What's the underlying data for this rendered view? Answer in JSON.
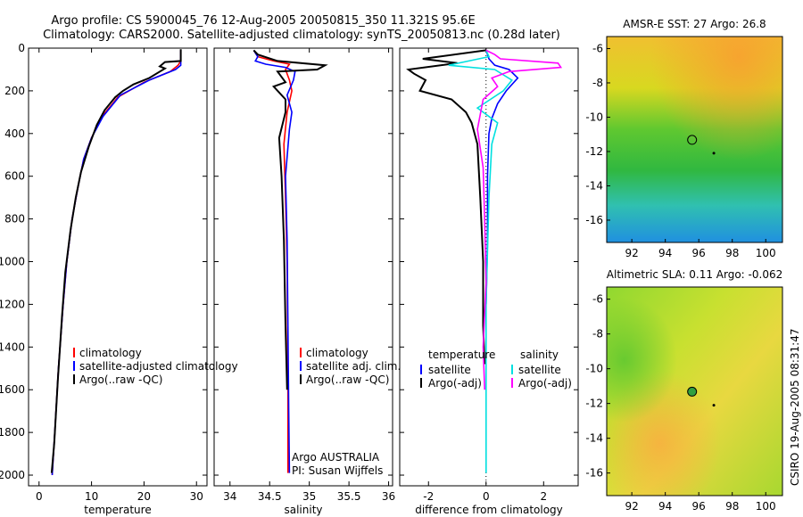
{
  "header": {
    "title_line1": "Argo profile: CS 5900045_76 12-Aug-2005 20050815_350 11.321S 95.6E",
    "title_line2": "Climatology: CARS2000. Satellite-adjusted climatology: synTS_20050813.nc (0.28d later)"
  },
  "footer": {
    "credit": "CSIRO 19-Aug-2005 08:31:47"
  },
  "colors": {
    "climatology": "#ff0000",
    "satellite": "#0000ff",
    "argo": "#000000",
    "sat_salinity": "#00e0e0",
    "argo_salinity": "#ff00ff"
  },
  "chart_data": [
    {
      "type": "line",
      "id": "temperature",
      "xlabel": "temperature",
      "xlim": [
        -2,
        32
      ],
      "xticks": [
        0,
        10,
        20,
        30
      ],
      "ylim": [
        0,
        2050
      ],
      "yticks": [
        0,
        200,
        400,
        600,
        800,
        1000,
        1200,
        1400,
        1600,
        1800,
        2000
      ],
      "legend": [
        "climatology",
        "satellite-adjusted climatology",
        "Argo(..raw -QC)"
      ],
      "series": [
        {
          "name": "climatology",
          "color": "#ff0000",
          "x": [
            27,
            27,
            26.5,
            25,
            20,
            15,
            12,
            10,
            8.5,
            7.5,
            6.3,
            5.3,
            4.6,
            3.7,
            3.0,
            2.5
          ],
          "y": [
            10,
            60,
            80,
            110,
            160,
            230,
            320,
            420,
            520,
            640,
            800,
            1000,
            1200,
            1500,
            1800,
            2000
          ]
        },
        {
          "name": "satellite-adjusted climatology",
          "color": "#0000ff",
          "x": [
            27,
            27,
            27,
            26,
            21,
            15.5,
            12.2,
            10,
            8.5,
            7.5,
            6.3,
            5.3,
            4.6,
            3.7,
            3.0,
            2.5
          ],
          "y": [
            10,
            60,
            80,
            100,
            150,
            220,
            320,
            420,
            520,
            640,
            800,
            1000,
            1200,
            1500,
            1800,
            2000
          ]
        },
        {
          "name": "Argo(..raw -QC)",
          "color": "#000000",
          "x": [
            27,
            27,
            24,
            23,
            24,
            21,
            18,
            16,
            14.5,
            12.5,
            11,
            9.5,
            8,
            7,
            6,
            5,
            4.4,
            3.6,
            2.9,
            2.4
          ],
          "y": [
            5,
            60,
            65,
            85,
            95,
            140,
            170,
            200,
            230,
            290,
            360,
            460,
            580,
            700,
            850,
            1050,
            1250,
            1550,
            1850,
            1990
          ]
        }
      ]
    },
    {
      "type": "line",
      "id": "salinity",
      "xlabel": "salinity",
      "xlim": [
        33.8,
        36.05
      ],
      "xticks": [
        34,
        34.5,
        35,
        35.5,
        36
      ],
      "ylim": [
        0,
        2050
      ],
      "legend": [
        "climatology",
        "satellite adj. clim.",
        "Argo(..raw -QC)"
      ],
      "annotation": [
        "Argo AUSTRALIA",
        "PI: Susan Wijffels"
      ],
      "series": [
        {
          "name": "climatology",
          "color": "#ff0000",
          "x": [
            34.3,
            34.35,
            34.55,
            34.75,
            34.7,
            34.75,
            34.78,
            34.72,
            34.68,
            34.7,
            34.72,
            34.73,
            34.73
          ],
          "y": [
            10,
            40,
            60,
            75,
            100,
            150,
            200,
            300,
            450,
            700,
            1000,
            1500,
            1990
          ]
        },
        {
          "name": "satellite adj. clim.",
          "color": "#0000ff",
          "x": [
            34.3,
            34.35,
            34.32,
            34.45,
            34.7,
            34.82,
            34.8,
            34.72,
            34.78,
            34.75,
            34.7,
            34.72,
            34.73,
            34.74,
            34.75
          ],
          "y": [
            10,
            40,
            60,
            75,
            90,
            110,
            150,
            220,
            300,
            380,
            600,
            900,
            1300,
            1700,
            1990
          ]
        },
        {
          "name": "Argo(..raw -QC)",
          "color": "#000000",
          "x": [
            34.3,
            34.35,
            34.6,
            35.2,
            35.1,
            34.6,
            34.7,
            34.55,
            34.7,
            34.7,
            34.62,
            34.65,
            34.68,
            34.7,
            34.72
          ],
          "y": [
            10,
            30,
            60,
            80,
            100,
            110,
            160,
            180,
            240,
            300,
            420,
            600,
            900,
            1300,
            1600
          ]
        }
      ]
    },
    {
      "type": "line",
      "id": "difference",
      "xlabel": "difference from climatology",
      "xlim": [
        -3,
        3.2
      ],
      "xticks": [
        -2,
        0,
        2
      ],
      "ylim": [
        0,
        2050
      ],
      "legend_left_title": "temperature",
      "legend_right_title": "salinity",
      "legend_left": [
        "satellite",
        "Argo(-adj)"
      ],
      "legend_right": [
        "satellite",
        "Argo(-adj)"
      ],
      "series": [
        {
          "name": "satellite",
          "color": "#0000ff",
          "x": [
            0,
            0.1,
            0.3,
            0.8,
            1.1,
            0.7,
            0.4,
            0.2,
            0.1,
            0.05,
            0.05,
            0.0
          ],
          "y": [
            10,
            50,
            80,
            100,
            140,
            200,
            260,
            330,
            400,
            600,
            900,
            1200
          ]
        },
        {
          "name": "Argo(-adj)",
          "color": "#000000",
          "x": [
            0,
            -2.2,
            -1,
            -2.7,
            -2.5,
            -2.1,
            -2.3,
            -1.2,
            -0.7,
            -0.5,
            -0.3,
            -0.2,
            -0.1,
            -0.1,
            -0.05
          ],
          "y": [
            10,
            50,
            70,
            100,
            120,
            150,
            200,
            240,
            300,
            350,
            450,
            700,
            1000,
            1300,
            1480
          ]
        },
        {
          "name": "satellite",
          "color": "#00e0e0",
          "x": [
            0,
            0.1,
            -1.3,
            0.3,
            0.9,
            0.6,
            -0.3,
            0.4,
            0.2,
            0.1,
            0.0,
            0.0
          ],
          "y": [
            10,
            40,
            80,
            100,
            150,
            200,
            280,
            350,
            450,
            700,
            1200,
            1990
          ]
        },
        {
          "name": "Argo(-adj)",
          "color": "#ff00ff",
          "x": [
            0,
            0.3,
            0.5,
            2.5,
            2.6,
            0.8,
            0.2,
            0.4,
            -0.1,
            -0.3,
            -0.1,
            -0.05,
            0.0,
            -0.1,
            -0.05
          ],
          "y": [
            10,
            30,
            50,
            70,
            90,
            110,
            140,
            180,
            240,
            380,
            560,
            800,
            1100,
            1400,
            1600
          ]
        }
      ]
    }
  ],
  "maps": [
    {
      "id": "sst",
      "title": "AMSR-E SST: 27 Argo: 26.8",
      "xticks": [
        92,
        94,
        96,
        98,
        100
      ],
      "yticks": [
        -6,
        -8,
        -10,
        -12,
        -14,
        -16
      ],
      "xlim": [
        90.5,
        101
      ],
      "ylim": [
        -17.3,
        -5.3
      ],
      "argo_lon": 95.6,
      "argo_lat": -11.321
    },
    {
      "id": "sla",
      "title": "Altimetric SLA: 0.11 Argo: -0.062",
      "xticks": [
        92,
        94,
        96,
        98,
        100
      ],
      "yticks": [
        -6,
        -8,
        -10,
        -12,
        -14,
        -16
      ],
      "xlim": [
        90.5,
        101
      ],
      "ylim": [
        -17.3,
        -5.3
      ],
      "argo_lon": 95.6,
      "argo_lat": -11.321
    }
  ]
}
